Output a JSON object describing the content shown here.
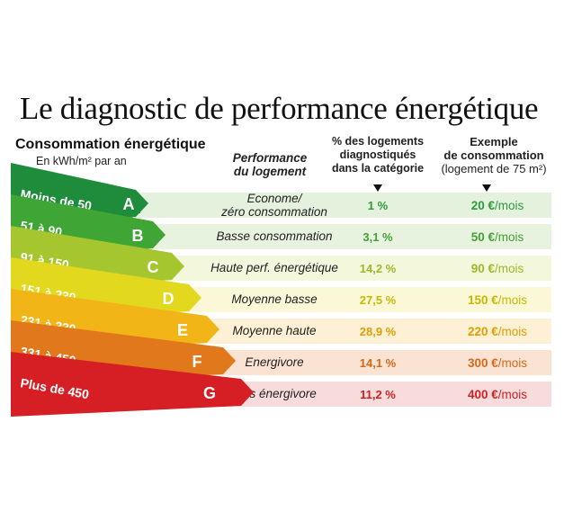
{
  "title": "Le diagnostic de performance énergétique",
  "headers": {
    "consumption": "Consommation énergétique",
    "unit": "En kWh/m² par an",
    "performance_line1": "Performance",
    "performance_line2": "du logement",
    "pct_line1": "% des logements",
    "pct_line2": "diagnostiqués",
    "pct_line3": "dans la catégorie",
    "example_line1": "Exemple",
    "example_line2": "de consommation",
    "example_line3": "(logement de 75 m²)"
  },
  "chart_data": {
    "type": "table",
    "columns": [
      "Consommation énergétique",
      "Performance du logement",
      "% des logements diagnostiqués dans la catégorie",
      "Exemple de consommation (logement de 75 m²)"
    ],
    "rows": [
      {
        "grade": "A",
        "range": "Moins de 50",
        "performance": [
          "Econome/",
          "zéro consommation"
        ],
        "pct": "1 %",
        "pct_value": 1,
        "cost": "20 €",
        "cost_value": 20,
        "cost_unit": "/mois",
        "color": "#1e8c3a",
        "bg": "#e3f1dd",
        "text_color": "#2f9a3b"
      },
      {
        "grade": "B",
        "range": "51 à 90",
        "performance": [
          "Basse consommation"
        ],
        "pct": "3,1 %",
        "pct_value": 3.1,
        "cost": "50 €",
        "cost_value": 50,
        "cost_unit": "/mois",
        "color": "#3fa535",
        "bg": "#e8f3df",
        "text_color": "#45a035"
      },
      {
        "grade": "C",
        "range": "91 à 150",
        "performance": [
          "Haute  perf. énergétique"
        ],
        "pct": "14,2 %",
        "pct_value": 14.2,
        "cost": "90 €",
        "cost_value": 90,
        "cost_unit": "/mois",
        "color": "#a6c630",
        "bg": "#f3f7dc",
        "text_color": "#9cb82a"
      },
      {
        "grade": "D",
        "range": "151 à 230",
        "performance": [
          "Moyenne basse"
        ],
        "pct": "27,5 %",
        "pct_value": 27.5,
        "cost": "150 €",
        "cost_value": 150,
        "cost_unit": "/mois",
        "color": "#e2d81e",
        "bg": "#fbf8d8",
        "text_color": "#c9b800"
      },
      {
        "grade": "E",
        "range": "231 à 330",
        "performance": [
          "Moyenne haute"
        ],
        "pct": "28,9 %",
        "pct_value": 28.9,
        "cost": "220 €",
        "cost_value": 220,
        "cost_unit": "/mois",
        "color": "#f2b518",
        "bg": "#fdf0d4",
        "text_color": "#dba000"
      },
      {
        "grade": "F",
        "range": "331 à 450",
        "performance": [
          "Energivore"
        ],
        "pct": "14,1 %",
        "pct_value": 14.1,
        "cost": "300 €",
        "cost_value": 300,
        "cost_unit": "/mois",
        "color": "#e2781c",
        "bg": "#fbe3d4",
        "text_color": "#d2691a"
      },
      {
        "grade": "G",
        "range": "Plus de 450",
        "performance": [
          "Très énergivore"
        ],
        "pct": "11,2 %",
        "pct_value": 11.2,
        "cost": "400 €",
        "cost_value": 400,
        "cost_unit": "/mois",
        "color": "#d51f24",
        "bg": "#f8dcdc",
        "text_color": "#cc2026"
      }
    ]
  }
}
